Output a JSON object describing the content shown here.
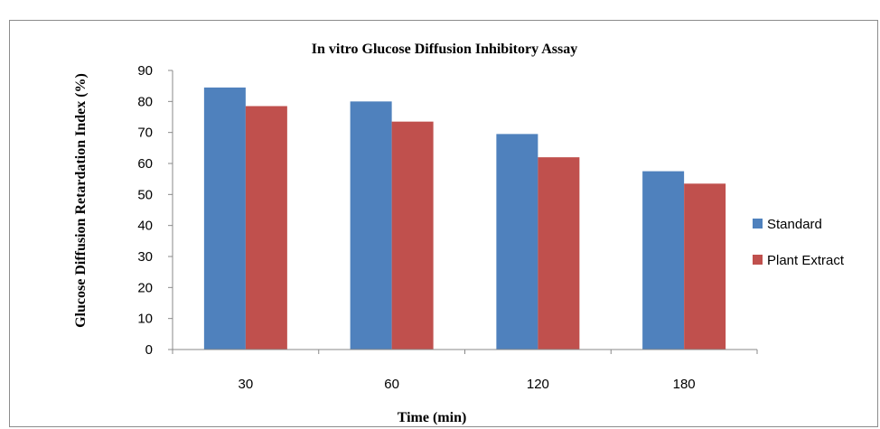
{
  "chart_data": {
    "type": "bar",
    "title": "In vitro Glucose Diffusion Inhibitory Assay",
    "xlabel": "Time (min)",
    "ylabel": "Glucose Diffusion Retardation Index (%)",
    "categories": [
      "30",
      "60",
      "120",
      "180"
    ],
    "ylim": [
      0,
      90
    ],
    "yticks": [
      0,
      10,
      20,
      30,
      40,
      50,
      60,
      70,
      80,
      90
    ],
    "grid": false,
    "legend": "right",
    "series": [
      {
        "name": "Standard",
        "color": "#4f81bd",
        "values": [
          84.5,
          80,
          69.5,
          57.5
        ]
      },
      {
        "name": "Plant Extract",
        "color": "#c0504d",
        "values": [
          78.5,
          73.5,
          62,
          53.5
        ]
      }
    ]
  }
}
